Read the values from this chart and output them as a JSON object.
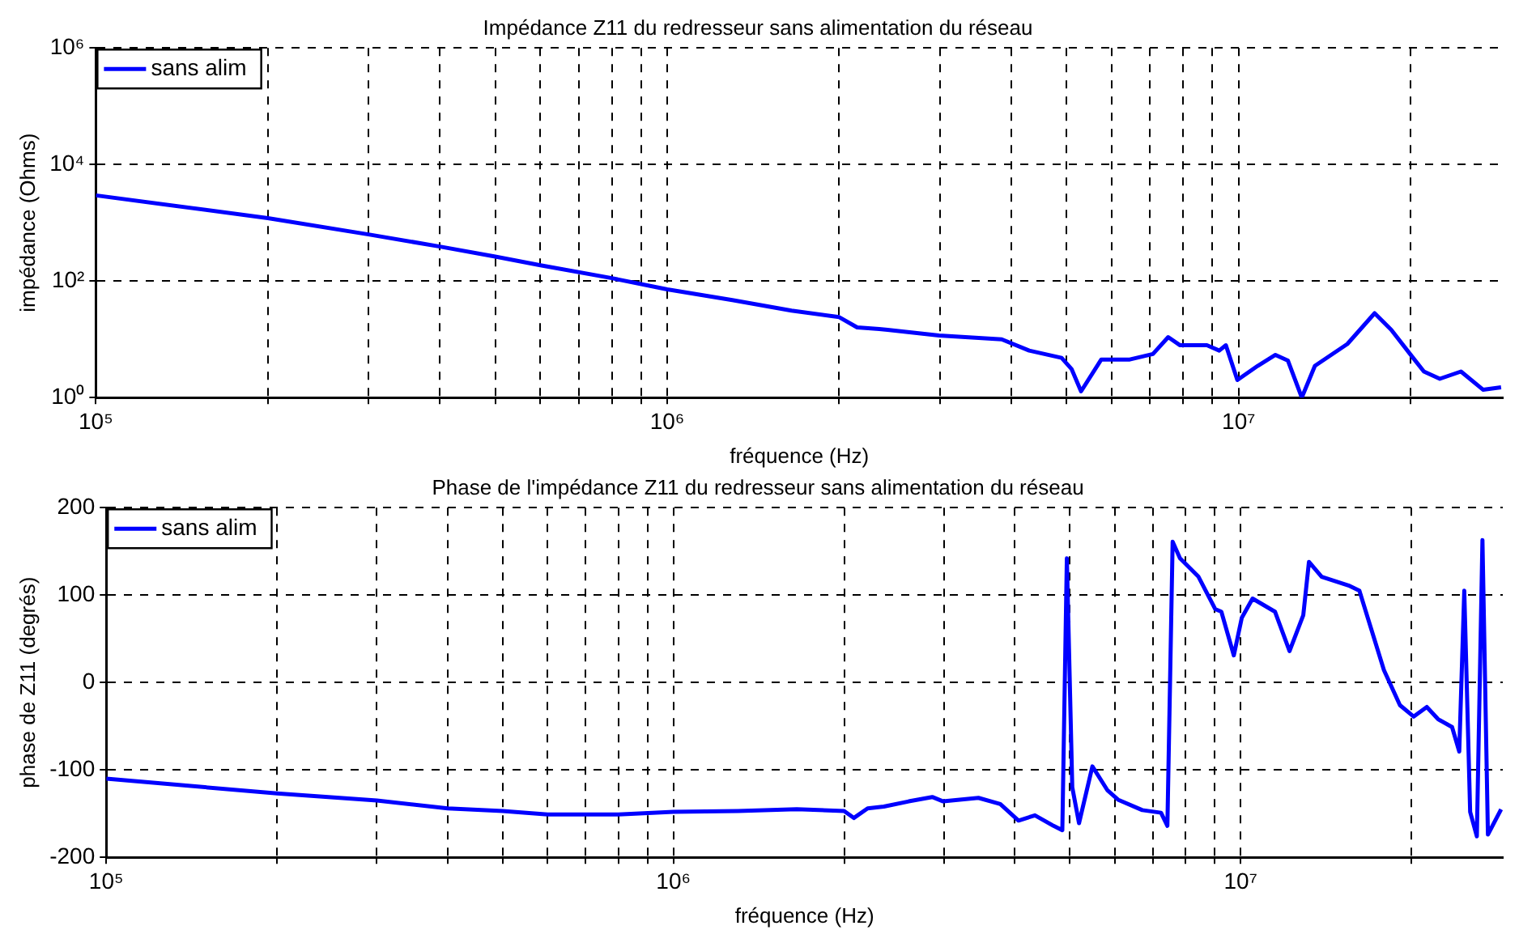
{
  "chart_data": [
    {
      "type": "line",
      "title": "Impédance Z11 du redresseur sans alimentation du réseau",
      "xlabel": "fréquence (Hz)",
      "ylabel": "impédance (Ohms)",
      "log": "xy",
      "grid": true,
      "legend": "top left",
      "line_style": "solid",
      "marker": "none",
      "xlim": [
        100000,
        29000000
      ],
      "ylim": [
        1,
        1000000
      ],
      "xticks": [
        {
          "value": 100000,
          "label": "10⁵"
        },
        {
          "value": 200000,
          "label": null
        },
        {
          "value": 300000,
          "label": null
        },
        {
          "value": 400000,
          "label": null
        },
        {
          "value": 500000,
          "label": null
        },
        {
          "value": 600000,
          "label": null
        },
        {
          "value": 700000,
          "label": null
        },
        {
          "value": 800000,
          "label": null
        },
        {
          "value": 900000,
          "label": null
        },
        {
          "value": 1000000,
          "label": "10⁶"
        },
        {
          "value": 2000000,
          "label": null
        },
        {
          "value": 3000000,
          "label": null
        },
        {
          "value": 4000000,
          "label": null
        },
        {
          "value": 5000000,
          "label": null
        },
        {
          "value": 6000000,
          "label": null
        },
        {
          "value": 7000000,
          "label": null
        },
        {
          "value": 8000000,
          "label": null
        },
        {
          "value": 9000000,
          "label": null
        },
        {
          "value": 10000000,
          "label": "10⁷"
        },
        {
          "value": 20000000,
          "label": null
        }
      ],
      "yticks": [
        {
          "value": 1,
          "label": "10⁰"
        },
        {
          "value": 100,
          "label": "10²"
        },
        {
          "value": 10000,
          "label": "10⁴"
        },
        {
          "value": 1000000,
          "label": "10⁶"
        }
      ],
      "series": [
        {
          "name": "sans alim",
          "color": "#0000ff",
          "x": [
            100000,
            200000,
            300000,
            400000,
            500000,
            600000,
            800000,
            1000000,
            1300000,
            1650000,
            2000000,
            2150000,
            2350000,
            2430000,
            2990000,
            3850000,
            4300000,
            4900000,
            5100000,
            5300000,
            5750000,
            6450000,
            7080000,
            7530000,
            7900000,
            8800000,
            9250000,
            9500000,
            9950000,
            10800000,
            11600000,
            12200000,
            12900000,
            13600000,
            15500000,
            17300000,
            18500000,
            20200000,
            21100000,
            22500000,
            24500000,
            26800000,
            28800000
          ],
          "values": [
            2950,
            1200,
            630,
            390,
            263,
            186,
            112,
            72,
            47,
            31,
            24,
            16,
            15,
            14.5,
            11.6,
            10,
            6.4,
            4.8,
            3.1,
            1.28,
            4.5,
            4.5,
            5.6,
            10.9,
            7.9,
            7.9,
            6.4,
            7.9,
            2,
            3.5,
            5.4,
            4.3,
            1,
            3.5,
            8.3,
            28,
            14.5,
            4.8,
            2.8,
            2.1,
            2.8,
            1.36,
            1.5
          ]
        }
      ]
    },
    {
      "type": "line",
      "title": "Phase de l'impédance Z11 du redresseur sans alimentation du réseau",
      "xlabel": "fréquence (Hz)",
      "ylabel": "phase de Z11 (degrés)",
      "log": "x",
      "grid": true,
      "legend": "top left",
      "line_style": "solid",
      "marker": "none",
      "xlim": [
        100000,
        29000000
      ],
      "ylim": [
        -200,
        200
      ],
      "xticks": [
        {
          "value": 100000,
          "label": "10⁵"
        },
        {
          "value": 200000,
          "label": null
        },
        {
          "value": 300000,
          "label": null
        },
        {
          "value": 400000,
          "label": null
        },
        {
          "value": 500000,
          "label": null
        },
        {
          "value": 600000,
          "label": null
        },
        {
          "value": 700000,
          "label": null
        },
        {
          "value": 800000,
          "label": null
        },
        {
          "value": 900000,
          "label": null
        },
        {
          "value": 1000000,
          "label": "10⁶"
        },
        {
          "value": 2000000,
          "label": null
        },
        {
          "value": 3000000,
          "label": null
        },
        {
          "value": 4000000,
          "label": null
        },
        {
          "value": 5000000,
          "label": null
        },
        {
          "value": 6000000,
          "label": null
        },
        {
          "value": 7000000,
          "label": null
        },
        {
          "value": 8000000,
          "label": null
        },
        {
          "value": 9000000,
          "label": null
        },
        {
          "value": 10000000,
          "label": "10⁷"
        },
        {
          "value": 20000000,
          "label": null
        }
      ],
      "yticks": [
        -200,
        -100,
        0,
        100,
        200
      ],
      "series": [
        {
          "name": "sans alim",
          "color": "#0000ff",
          "x": [
            100000,
            200000,
            300000,
            400000,
            500000,
            600000,
            800000,
            1000000,
            1300000,
            1650000,
            2000000,
            2080000,
            2200000,
            2350000,
            2600000,
            2860000,
            2990000,
            3450000,
            3770000,
            4060000,
            4340000,
            4680000,
            4850000,
            4940000,
            5050000,
            5190000,
            5480000,
            5820000,
            6080000,
            6710000,
            7240000,
            7430000,
            7590000,
            7820000,
            8430000,
            9020000,
            9250000,
            9730000,
            10050000,
            10500000,
            11500000,
            12200000,
            12900000,
            13200000,
            13900000,
            15500000,
            16200000,
            17900000,
            19100000,
            20200000,
            21300000,
            22300000,
            23600000,
            24300000,
            24800000,
            25400000,
            26100000,
            26700000,
            27300000,
            28800000
          ],
          "values": [
            -110,
            -127,
            -135,
            -144,
            -147,
            -151,
            -151,
            -148,
            -147,
            -145,
            -147,
            -155,
            -144,
            -142,
            -136,
            -131,
            -136,
            -132,
            -139,
            -158,
            -152,
            -164,
            -169,
            142,
            -120,
            -161,
            -96,
            -123,
            -134,
            -146,
            -149,
            -164,
            161,
            142,
            121,
            84,
            81,
            31,
            74,
            96,
            81,
            36,
            77,
            138,
            121,
            111,
            105,
            14,
            -26,
            -39,
            -28,
            -42,
            -51,
            -79,
            105,
            -148,
            -176,
            163,
            -174,
            -145
          ]
        }
      ]
    }
  ]
}
